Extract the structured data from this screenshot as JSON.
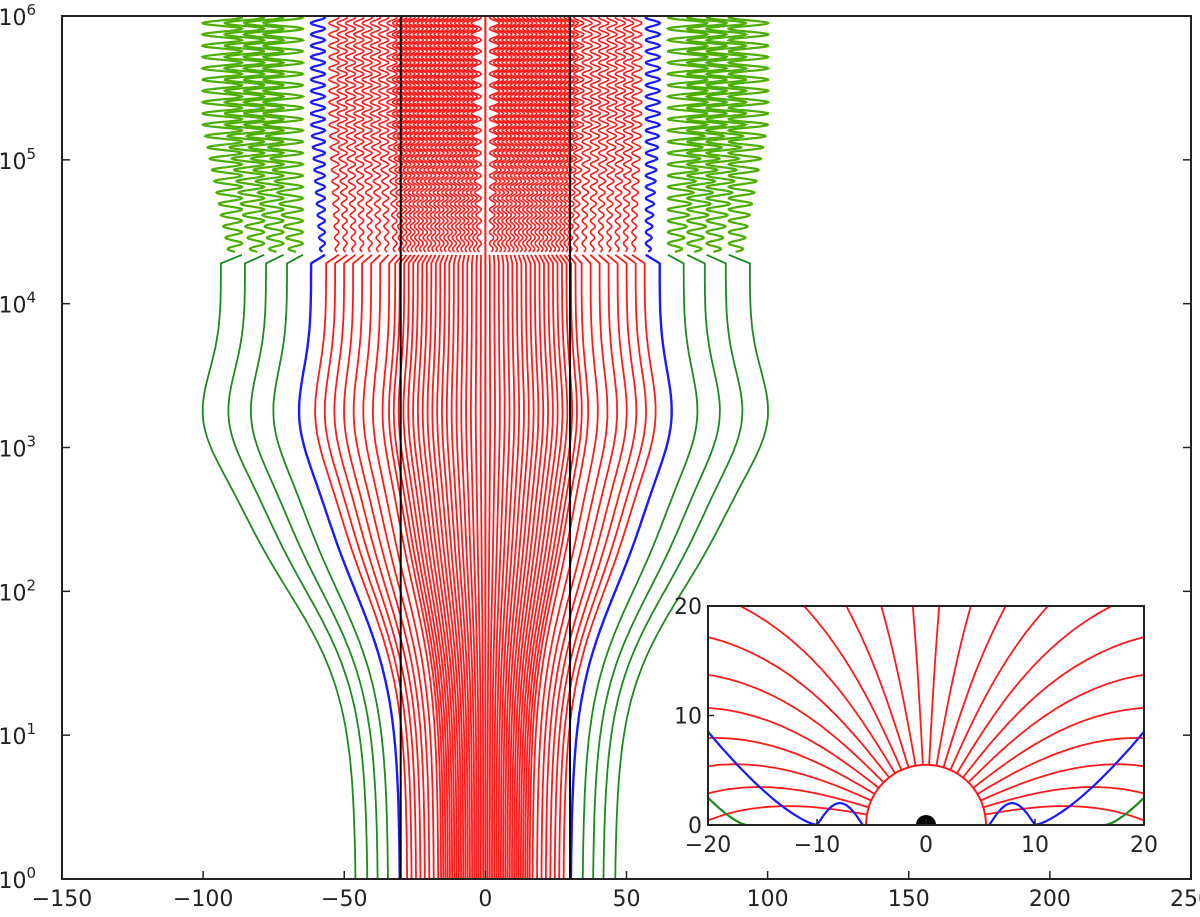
{
  "chart_data": [
    {
      "type": "line",
      "title": "",
      "xlabel": "",
      "ylabel": "",
      "xlim": [
        -150,
        250
      ],
      "ylim": [
        1,
        1000000
      ],
      "yscale": "log",
      "grid": false,
      "legend": "none",
      "x_ticks": [
        "−150",
        "−100",
        "−50",
        "0",
        "50",
        "100",
        "150",
        "200",
        "250"
      ],
      "y_ticks": [
        {
          "base": "10",
          "exp": "0"
        },
        {
          "base": "10",
          "exp": "1"
        },
        {
          "base": "10",
          "exp": "2"
        },
        {
          "base": "10",
          "exp": "3"
        },
        {
          "base": "10",
          "exp": "4"
        },
        {
          "base": "10",
          "exp": "5"
        },
        {
          "base": "10",
          "exp": "6"
        }
      ],
      "vertical_lines_x": [
        -30,
        30
      ],
      "colors": {
        "red": "#ff1a1a",
        "blue": "#1a1aff",
        "green_dark": "#1a8c1a",
        "green_light": "#6ccc33",
        "green_fill": "#4caf00",
        "black": "#000000"
      },
      "series_groups": {
        "red_base_offsets": [
          1.5,
          3,
          4.5,
          6,
          7.5,
          9,
          10.5,
          12,
          13.5,
          15,
          16.5,
          18,
          19.5,
          21,
          22.5,
          24,
          25.5,
          27,
          28.5,
          30,
          32,
          35,
          38,
          41,
          44,
          47,
          50,
          53
        ],
        "blue_base_offset": 58,
        "green_base_offsets": [
          66,
          73,
          80,
          88
        ]
      },
      "transition_y": 20000,
      "oscillation_region_y": [
        20000,
        1000000
      ]
    },
    {
      "type": "line",
      "title": "",
      "xlim": [
        -20,
        20
      ],
      "ylim": [
        0,
        20
      ],
      "x_ticks": [
        "−20",
        "−10",
        "0",
        "10",
        "20"
      ],
      "y_ticks": [
        "0",
        "10",
        "20"
      ],
      "grid": false,
      "legend": "none",
      "central_disk_radius": 0.8,
      "red_radius": 5.5,
      "red_angles_deg": [
        10,
        17,
        24,
        31,
        38,
        45,
        52,
        59,
        66,
        73,
        80,
        87,
        93,
        100,
        107,
        114,
        121,
        128,
        135,
        142,
        149,
        156,
        163,
        170
      ],
      "blue_footpoints": [
        -10,
        -5.8,
        5.8,
        10
      ],
      "green_footpoints": [
        -16.5,
        16.5
      ]
    }
  ]
}
